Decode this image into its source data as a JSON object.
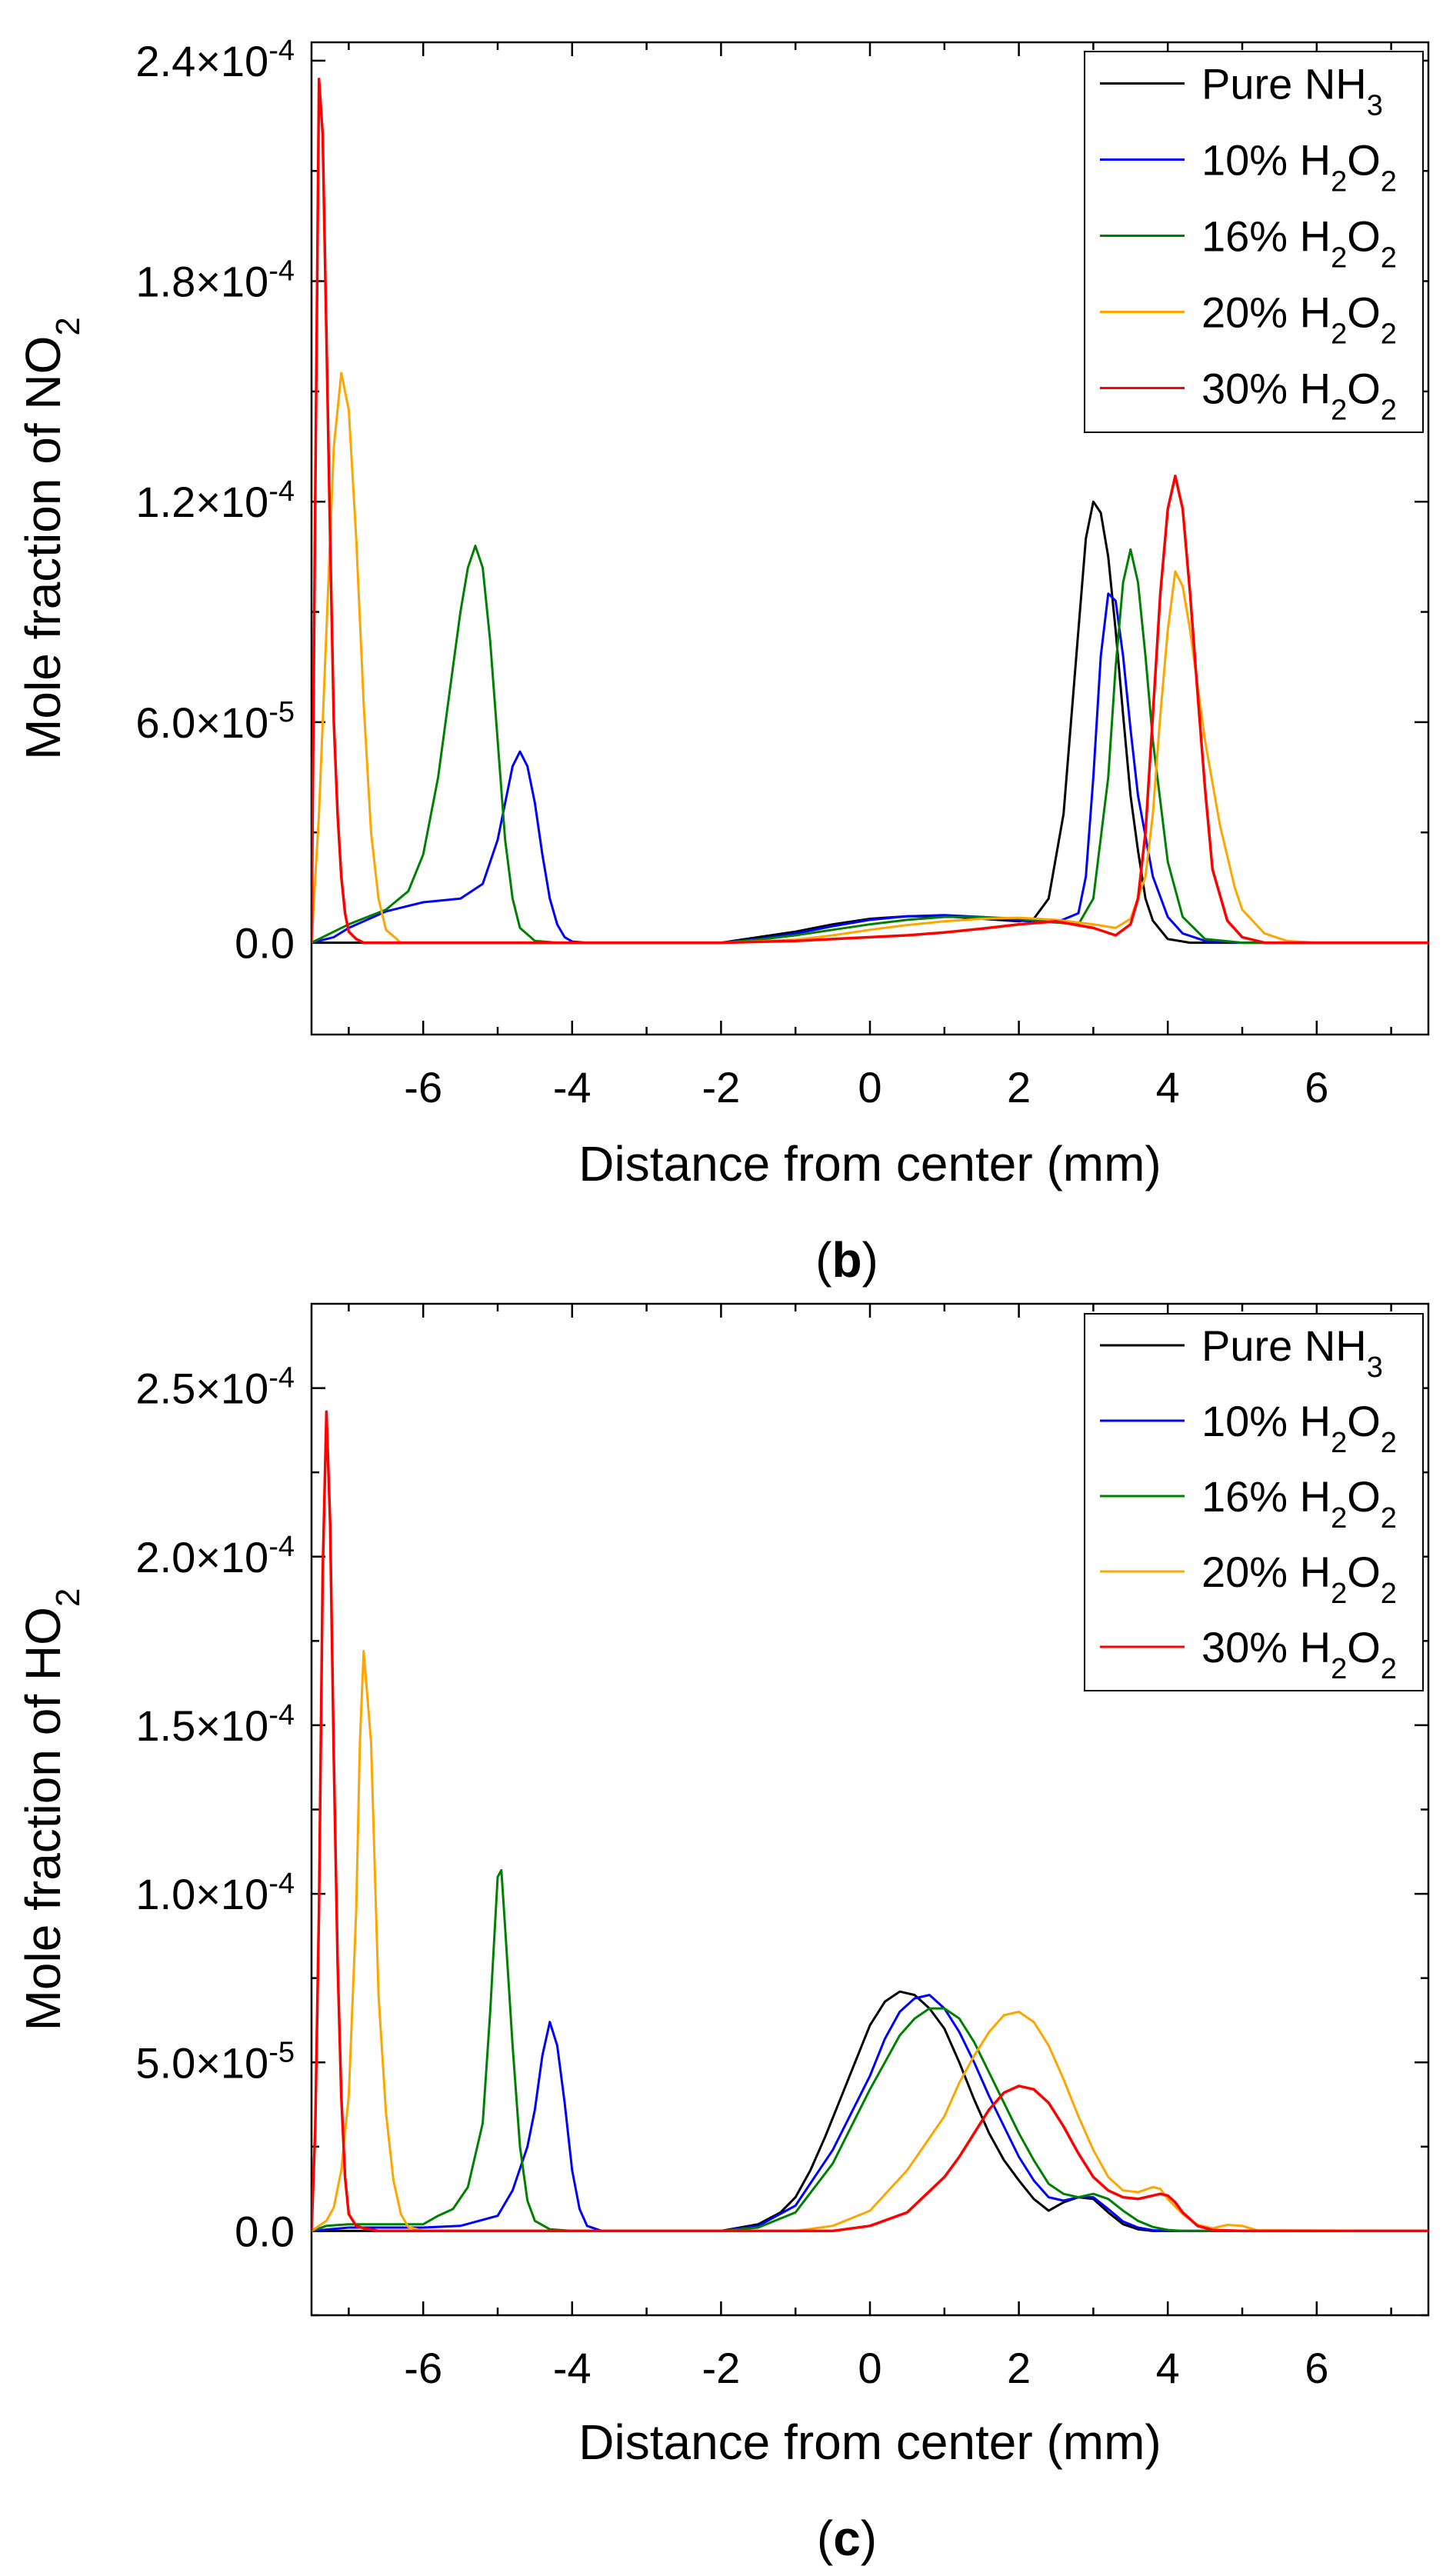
{
  "chart_data": [
    {
      "type": "line",
      "panel_label": "(b)",
      "panel_letter": "b",
      "xlabel": "Distance from center (mm)",
      "ylabel": "Mole fraction of NO",
      "ylabel_subscript": "2",
      "xlim": [
        -7.5,
        7.5
      ],
      "ylim": [
        -2.5e-05,
        0.000245
      ],
      "x_ticks": [
        -6,
        -4,
        -2,
        0,
        2,
        4,
        6
      ],
      "y_ticks": [
        {
          "value": 0.00024,
          "mantissa": "2.4",
          "exponent": "-4"
        },
        {
          "value": 0.00018,
          "mantissa": "1.8",
          "exponent": "-4"
        },
        {
          "value": 0.00012,
          "mantissa": "1.2",
          "exponent": "-4"
        },
        {
          "value": 6e-05,
          "mantissa": "6.0",
          "exponent": "-5"
        },
        {
          "value": 0,
          "plain": "0.0"
        }
      ],
      "legend_position": "top-right",
      "series": [
        {
          "name": "Pure NH3",
          "label": "Pure NH",
          "sub": "3",
          "color": "#000000",
          "x": [
            -7.5,
            -7,
            -6.5,
            -6,
            -5,
            -4,
            -3,
            -2,
            -1.5,
            -1,
            -0.5,
            0,
            0.5,
            1,
            1.5,
            2,
            2.2,
            2.4,
            2.6,
            2.8,
            2.9,
            3,
            3.1,
            3.2,
            3.3,
            3.4,
            3.5,
            3.6,
            3.7,
            3.8,
            4,
            4.3,
            5,
            6,
            7.5
          ],
          "y": [
            0,
            0,
            0,
            0,
            0,
            0,
            0,
            0,
            1.5e-06,
            3e-06,
            5e-06,
            6.5e-06,
            7.2e-06,
            7.2e-06,
            6.5e-06,
            5.8e-06,
            6.5e-06,
            1.2e-05,
            3.5e-05,
            8.5e-05,
            0.00011,
            0.00012,
            0.000117,
            0.000105,
            8.5e-05,
            6.2e-05,
            4e-05,
            2.5e-05,
            1.2e-05,
            6e-06,
            1e-06,
            0,
            0,
            0,
            0
          ]
        },
        {
          "name": "10% H2O2",
          "label": "10% H",
          "sub": "2",
          "label2": "O",
          "sub2": "2",
          "color": "#0000ff",
          "x": [
            -7.5,
            -7.2,
            -7,
            -6.5,
            -6,
            -5.5,
            -5.2,
            -5,
            -4.9,
            -4.8,
            -4.7,
            -4.6,
            -4.5,
            -4.4,
            -4.3,
            -4.2,
            -4.1,
            -4,
            -3.8,
            -3,
            -2,
            -1.5,
            -1,
            -0.5,
            0,
            0.5,
            1,
            1.5,
            2,
            2.5,
            2.8,
            2.9,
            3,
            3.1,
            3.2,
            3.3,
            3.4,
            3.5,
            3.6,
            3.8,
            4,
            4.2,
            4.5,
            5,
            6,
            7.5
          ],
          "y": [
            0,
            1.5e-06,
            4e-06,
            8.5e-06,
            1.1e-05,
            1.2e-05,
            1.6e-05,
            2.8e-05,
            3.8e-05,
            4.8e-05,
            5.2e-05,
            4.8e-05,
            3.8e-05,
            2.4e-05,
            1.2e-05,
            5e-06,
            1.5e-06,
            3e-07,
            0,
            0,
            0,
            1e-06,
            2.5e-06,
            4.5e-06,
            6.2e-06,
            7.2e-06,
            7.5e-06,
            7e-06,
            6e-06,
            5.5e-06,
            8e-06,
            1.8e-05,
            4.5e-05,
            7.8e-05,
            9.5e-05,
            9.3e-05,
            7.8e-05,
            5.8e-05,
            4e-05,
            1.8e-05,
            7e-06,
            2.5e-06,
            5e-07,
            0,
            0,
            0
          ]
        },
        {
          "name": "16% H2O2",
          "label": "16% H",
          "sub": "2",
          "label2": "O",
          "sub2": "2",
          "color": "#008000",
          "x": [
            -7.5,
            -7,
            -6.5,
            -6.2,
            -6,
            -5.8,
            -5.6,
            -5.5,
            -5.4,
            -5.3,
            -5.2,
            -5.1,
            -5,
            -4.9,
            -4.8,
            -4.7,
            -4.5,
            -4.2,
            -4,
            -3,
            -2,
            -1.5,
            -1,
            -0.5,
            0,
            0.5,
            1,
            1.5,
            2,
            2.5,
            2.8,
            3,
            3.2,
            3.3,
            3.4,
            3.5,
            3.6,
            3.7,
            3.8,
            4,
            4.2,
            4.5,
            5,
            6,
            7.5
          ],
          "y": [
            0,
            5e-06,
            9e-06,
            1.4e-05,
            2.4e-05,
            4.5e-05,
            7.5e-05,
            9e-05,
            0.000102,
            0.000108,
            0.000102,
            8.2e-05,
            5.5e-05,
            2.8e-05,
            1.2e-05,
            4e-06,
            5e-07,
            0,
            0,
            0,
            0,
            8e-07,
            2e-06,
            3.5e-06,
            5e-06,
            6.2e-06,
            7e-06,
            7e-06,
            6.5e-06,
            5.5e-06,
            5e-06,
            1.2e-05,
            4.5e-05,
            7.5e-05,
            9.8e-05,
            0.000107,
            9.8e-05,
            7.8e-05,
            5.5e-05,
            2.2e-05,
            7e-06,
            1e-06,
            0,
            0,
            0
          ]
        },
        {
          "name": "20% H2O2",
          "label": "20% H",
          "sub": "2",
          "label2": "O",
          "sub2": "2",
          "color": "#ffa500",
          "x": [
            -7.5,
            -7.4,
            -7.3,
            -7.2,
            -7.1,
            -7,
            -6.9,
            -6.8,
            -6.7,
            -6.6,
            -6.5,
            -6.3,
            -6,
            -4,
            -2,
            -1,
            -0.5,
            0,
            0.5,
            1,
            1.5,
            2,
            2.5,
            3,
            3.3,
            3.5,
            3.7,
            3.8,
            3.9,
            4,
            4.1,
            4.2,
            4.3,
            4.4,
            4.5,
            4.7,
            4.9,
            5,
            5.3,
            5.6,
            6,
            7.5
          ],
          "y": [
            0,
            3.5e-05,
            8.5e-05,
            0.000135,
            0.000155,
            0.000145,
            0.00011,
            6.5e-05,
            3e-05,
            1.2e-05,
            3.5e-06,
            0,
            0,
            0,
            0,
            8e-07,
            2e-06,
            3.5e-06,
            4.8e-06,
            5.8e-06,
            6.5e-06,
            6.8e-06,
            6.2e-06,
            5e-06,
            4e-06,
            6.5e-06,
            1.8e-05,
            3.5e-05,
            6.2e-05,
            8.5e-05,
            0.000101,
            9.7e-05,
            8.5e-05,
            7e-05,
            5.5e-05,
            3.2e-05,
            1.5e-05,
            9e-06,
            2.5e-06,
            5e-07,
            0,
            0
          ]
        },
        {
          "name": "30% H2O2",
          "label": "30% H",
          "sub": "2",
          "label2": "O",
          "sub2": "2",
          "color": "#ff0000",
          "x": [
            -7.5,
            -7.45,
            -7.4,
            -7.35,
            -7.3,
            -7.25,
            -7.2,
            -7.15,
            -7.1,
            -7.05,
            -7,
            -6.9,
            -6.8,
            -6.5,
            -5,
            -3,
            -2,
            -1,
            0,
            0.5,
            1,
            1.5,
            2,
            2.5,
            3,
            3.3,
            3.5,
            3.6,
            3.7,
            3.8,
            3.9,
            4,
            4.1,
            4.2,
            4.3,
            4.4,
            4.5,
            4.6,
            4.8,
            5,
            5.3,
            6,
            7.5
          ],
          "y": [
            0,
            0.00012,
            0.000235,
            0.00022,
            0.000165,
            0.00011,
            6e-05,
            3.5e-05,
            1.8e-05,
            8e-06,
            3e-06,
            1e-06,
            0,
            0,
            0,
            0,
            0,
            5e-07,
            1.5e-06,
            2e-06,
            2.8e-06,
            3.8e-06,
            5e-06,
            5.8e-06,
            4e-06,
            2e-06,
            5e-06,
            1.2e-05,
            3e-05,
            6.2e-05,
            9.5e-05,
            0.000118,
            0.000127,
            0.000118,
            9.5e-05,
            6.8e-05,
            4.2e-05,
            2e-05,
            6e-06,
            1.5e-06,
            0,
            0,
            0
          ]
        }
      ]
    },
    {
      "type": "line",
      "panel_label": "(c)",
      "panel_letter": "c",
      "xlabel": "Distance from center (mm)",
      "ylabel": "Mole fraction of HO",
      "ylabel_subscript": "2",
      "xlim": [
        -7.5,
        7.5
      ],
      "ylim": [
        -2.5e-05,
        0.000275
      ],
      "x_ticks": [
        -6,
        -4,
        -2,
        0,
        2,
        4,
        6
      ],
      "y_ticks": [
        {
          "value": 0.00025,
          "mantissa": "2.5",
          "exponent": "-4"
        },
        {
          "value": 0.0002,
          "mantissa": "2.0",
          "exponent": "-4"
        },
        {
          "value": 0.00015,
          "mantissa": "1.5",
          "exponent": "-4"
        },
        {
          "value": 0.0001,
          "mantissa": "1.0",
          "exponent": "-4"
        },
        {
          "value": 5e-05,
          "mantissa": "5.0",
          "exponent": "-5"
        },
        {
          "value": 0,
          "plain": "0.0"
        }
      ],
      "legend_position": "top-right",
      "series": [
        {
          "name": "Pure NH3",
          "label": "Pure NH",
          "sub": "3",
          "color": "#000000",
          "x": [
            -7.5,
            -6,
            -3,
            -2,
            -1.5,
            -1.2,
            -1,
            -0.8,
            -0.6,
            -0.4,
            -0.2,
            0,
            0.2,
            0.4,
            0.6,
            0.8,
            1,
            1.2,
            1.4,
            1.6,
            1.8,
            2,
            2.2,
            2.4,
            2.6,
            2.8,
            3,
            3.2,
            3.4,
            3.6,
            3.8,
            4,
            7.5
          ],
          "y": [
            0,
            0,
            0,
            0,
            2e-06,
            5.5e-06,
            1e-05,
            1.8e-05,
            2.8e-05,
            3.9e-05,
            5e-05,
            6.1e-05,
            6.8e-05,
            7.1e-05,
            7e-05,
            6.6e-05,
            6e-05,
            5e-05,
            3.9e-05,
            2.9e-05,
            2.1e-05,
            1.5e-05,
            9.5e-06,
            6e-06,
            8.5e-06,
            1e-05,
            9.5e-06,
            5.5e-06,
            2e-06,
            5e-07,
            0,
            0,
            0
          ]
        },
        {
          "name": "10% H2O2",
          "label": "10% H",
          "sub": "2",
          "label2": "O",
          "sub2": "2",
          "color": "#0000ff",
          "x": [
            -7.5,
            -7,
            -6,
            -5.5,
            -5,
            -4.8,
            -4.6,
            -4.5,
            -4.4,
            -4.3,
            -4.2,
            -4.1,
            -4,
            -3.9,
            -3.8,
            -3.6,
            -3,
            -2,
            -1.5,
            -1,
            -0.5,
            0,
            0.2,
            0.4,
            0.6,
            0.8,
            1,
            1.2,
            1.4,
            1.6,
            1.8,
            2,
            2.2,
            2.4,
            2.6,
            2.8,
            3,
            3.2,
            3.4,
            3.6,
            3.8,
            4,
            4.2,
            7.5
          ],
          "y": [
            0,
            1e-06,
            1e-06,
            1.5e-06,
            4.5e-06,
            1.2e-05,
            2.5e-05,
            3.6e-05,
            5.2e-05,
            6.2e-05,
            5.5e-05,
            3.8e-05,
            1.8e-05,
            6.5e-06,
            1.5e-06,
            0,
            0,
            0,
            1.5e-06,
            7.5e-06,
            2.4e-05,
            4.6e-05,
            5.7e-05,
            6.5e-05,
            6.9e-05,
            7e-05,
            6.6e-05,
            5.9e-05,
            5e-05,
            4e-05,
            3.1e-05,
            2.2e-05,
            1.5e-05,
            1e-05,
            9e-06,
            1e-05,
            1e-05,
            6.5e-06,
            2.8e-06,
            1e-06,
            2e-07,
            0,
            0,
            0
          ]
        },
        {
          "name": "16% H2O2",
          "label": "16% H",
          "sub": "2",
          "label2": "O",
          "sub2": "2",
          "color": "#008000",
          "x": [
            -7.5,
            -7.3,
            -7,
            -6.5,
            -6,
            -5.8,
            -5.6,
            -5.4,
            -5.2,
            -5.1,
            -5,
            -4.95,
            -4.9,
            -4.8,
            -4.7,
            -4.6,
            -4.5,
            -4.3,
            -4,
            -2,
            -1.5,
            -1,
            -0.5,
            0,
            0.2,
            0.4,
            0.6,
            0.8,
            1,
            1.2,
            1.4,
            1.6,
            1.8,
            2,
            2.2,
            2.4,
            2.6,
            2.8,
            3,
            3.2,
            3.4,
            3.6,
            3.8,
            4,
            4.2,
            4.4,
            7.5
          ],
          "y": [
            0,
            1.5e-06,
            2e-06,
            2e-06,
            2e-06,
            4.5e-06,
            6.5e-06,
            1.3e-05,
            3.2e-05,
            6.5e-05,
            0.000105,
            0.000107,
            9e-05,
            5.5e-05,
            2.5e-05,
            9e-06,
            3e-06,
            5e-07,
            0,
            0,
            1e-06,
            5.5e-06,
            2e-05,
            4.2e-05,
            5e-05,
            5.8e-05,
            6.3e-05,
            6.6e-05,
            6.6e-05,
            6.3e-05,
            5.6e-05,
            4.7e-05,
            3.8e-05,
            2.9e-05,
            2.1e-05,
            1.4e-05,
            1.1e-05,
            1e-05,
            1.1e-05,
            9.5e-06,
            6e-06,
            3e-06,
            1.2e-06,
            3e-07,
            0,
            0,
            0
          ]
        },
        {
          "name": "20% H2O2",
          "label": "20% H",
          "sub": "2",
          "label2": "O",
          "sub2": "2",
          "color": "#ffa500",
          "x": [
            -7.5,
            -7.4,
            -7.3,
            -7.2,
            -7.1,
            -7,
            -6.9,
            -6.85,
            -6.8,
            -6.7,
            -6.6,
            -6.5,
            -6.4,
            -6.3,
            -6.2,
            -6,
            -3,
            -1,
            -0.5,
            0,
            0.5,
            1,
            1.2,
            1.4,
            1.6,
            1.8,
            2,
            2.2,
            2.4,
            2.6,
            2.8,
            3,
            3.2,
            3.4,
            3.6,
            3.8,
            3.9,
            4,
            4.2,
            4.4,
            4.6,
            4.8,
            5,
            5.2,
            7.5
          ],
          "y": [
            0,
            1.5e-06,
            3e-06,
            7e-06,
            1.8e-05,
            4e-05,
            9.5e-05,
            0.000145,
            0.000172,
            0.000145,
            7e-05,
            3.5e-05,
            1.5e-05,
            5e-06,
            1.2e-06,
            0,
            0,
            0,
            1.5e-06,
            6e-06,
            1.8e-05,
            3.4e-05,
            4.4e-05,
            5.2e-05,
            5.9e-05,
            6.4e-05,
            6.5e-05,
            6.2e-05,
            5.5e-05,
            4.5e-05,
            3.4e-05,
            2.4e-05,
            1.6e-05,
            1.2e-05,
            1.15e-05,
            1.3e-05,
            1.25e-05,
            9.5e-06,
            5e-06,
            1.8e-06,
            8e-07,
            1.8e-06,
            1.5e-06,
            2e-07,
            0
          ]
        },
        {
          "name": "30% H2O2",
          "label": "30% H",
          "sub": "2",
          "label2": "O",
          "sub2": "2",
          "color": "#ff0000",
          "x": [
            -7.5,
            -7.45,
            -7.4,
            -7.35,
            -7.3,
            -7.25,
            -7.2,
            -7.15,
            -7.1,
            -7.05,
            -7,
            -6.9,
            -6.8,
            -6.6,
            -6,
            -3,
            -1,
            -0.5,
            0,
            0.5,
            1,
            1.2,
            1.4,
            1.6,
            1.8,
            2,
            2.2,
            2.4,
            2.6,
            2.8,
            3,
            3.2,
            3.4,
            3.6,
            3.8,
            3.9,
            4,
            4.1,
            4.2,
            4.4,
            4.6,
            5,
            7.5
          ],
          "y": [
            0,
            3e-05,
            9.5e-05,
            0.000195,
            0.000243,
            0.00021,
            0.00014,
            8e-05,
            4e-05,
            1.6e-05,
            5e-06,
            1.5e-06,
            8e-07,
            0,
            0,
            0,
            0,
            0,
            1.5e-06,
            5.5e-06,
            1.6e-05,
            2.2e-05,
            2.9e-05,
            3.6e-05,
            4.1e-05,
            4.3e-05,
            4.2e-05,
            3.8e-05,
            3.1e-05,
            2.3e-05,
            1.6e-05,
            1.2e-05,
            1e-05,
            9.5e-06,
            1.05e-05,
            1.1e-05,
            1.05e-05,
            8.5e-06,
            5.5e-06,
            1.5e-06,
            3e-07,
            0,
            0
          ]
        }
      ]
    }
  ]
}
